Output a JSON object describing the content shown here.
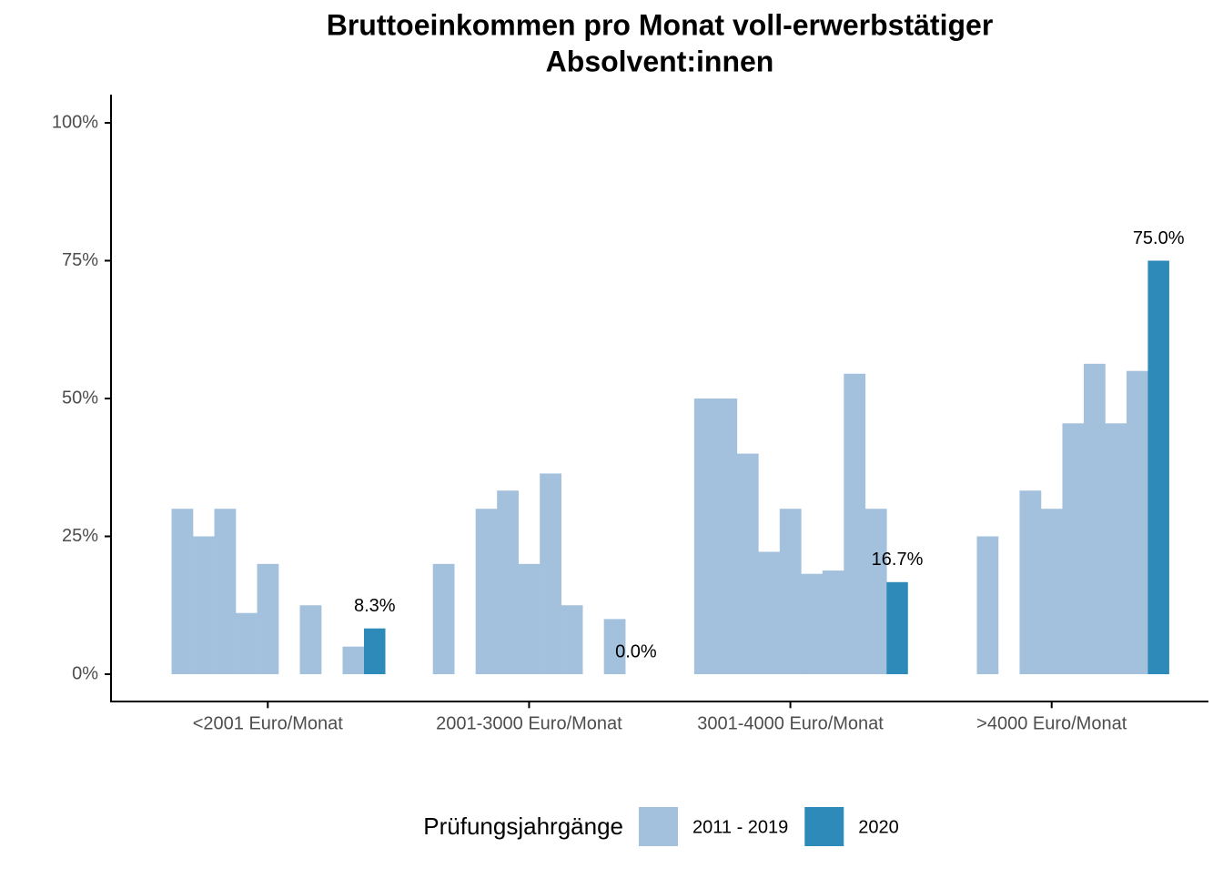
{
  "chart_data": {
    "type": "bar",
    "title": [
      "Bruttoeinkommen pro Monat voll-erwerbstätiger",
      "Absolvent:innen"
    ],
    "categories": [
      "<2001 Euro/Monat",
      "2001-3000 Euro/Monat",
      "3001-4000 Euro/Monat",
      ">4000 Euro/Monat"
    ],
    "series": [
      {
        "name": "2011 - 2019",
        "color": "#a3c1dd",
        "values": [
          [
            null,
            30,
            25,
            30,
            11.1,
            20,
            null,
            12.5,
            null,
            5
          ],
          [
            null,
            20,
            null,
            30,
            33.3,
            20,
            36.4,
            12.5,
            null,
            10
          ],
          [
            null,
            50,
            50,
            40,
            22.2,
            30,
            18.2,
            18.8,
            54.5,
            30
          ],
          [
            null,
            null,
            25,
            null,
            33.3,
            30,
            45.5,
            56.3,
            45.5,
            55
          ]
        ]
      },
      {
        "name": "2020",
        "color": "#2e8bb9",
        "values": [
          8.3,
          0,
          16.7,
          75
        ],
        "value_labels": [
          "8.3%",
          "0.0%",
          "16.7%",
          "75.0%"
        ]
      }
    ],
    "legend_title": "Prüfungsjahrgänge",
    "ylim": [
      -5,
      105
    ],
    "yticks": [
      {
        "value": 0,
        "label": "0%"
      },
      {
        "value": 25,
        "label": "25%"
      },
      {
        "value": 50,
        "label": "50%"
      },
      {
        "value": 75,
        "label": "75%"
      },
      {
        "value": 100,
        "label": "100%"
      }
    ],
    "legend": "bottom"
  }
}
